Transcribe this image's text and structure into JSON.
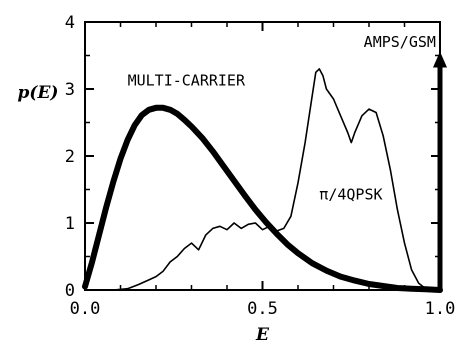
{
  "chart_data": {
    "type": "line",
    "xlabel": "E",
    "ylabel": "p(E)",
    "xlim": [
      0.0,
      1.0
    ],
    "ylim": [
      0,
      4
    ],
    "x_ticks": [
      {
        "value": 0.0,
        "label": "0.0"
      },
      {
        "value": 0.5,
        "label": "0.5"
      },
      {
        "value": 1.0,
        "label": "1.0"
      }
    ],
    "y_ticks": [
      {
        "value": 0,
        "label": "0"
      },
      {
        "value": 1,
        "label": "1"
      },
      {
        "value": 2,
        "label": "2"
      },
      {
        "value": 3,
        "label": "3"
      },
      {
        "value": 4,
        "label": "4"
      }
    ],
    "grid": false,
    "series": [
      {
        "name": "MULTI-CARRIER",
        "style": "thick",
        "x": [
          0.0,
          0.02,
          0.04,
          0.06,
          0.08,
          0.1,
          0.12,
          0.14,
          0.16,
          0.18,
          0.2,
          0.22,
          0.24,
          0.26,
          0.28,
          0.3,
          0.33,
          0.36,
          0.39,
          0.42,
          0.45,
          0.48,
          0.51,
          0.54,
          0.57,
          0.6,
          0.64,
          0.68,
          0.72,
          0.76,
          0.8,
          0.84,
          0.88,
          0.92,
          0.96,
          1.0
        ],
        "y": [
          0.05,
          0.42,
          0.83,
          1.24,
          1.62,
          1.96,
          2.24,
          2.46,
          2.61,
          2.69,
          2.72,
          2.72,
          2.69,
          2.63,
          2.54,
          2.44,
          2.27,
          2.07,
          1.85,
          1.63,
          1.41,
          1.2,
          1.01,
          0.84,
          0.68,
          0.55,
          0.4,
          0.29,
          0.2,
          0.14,
          0.09,
          0.06,
          0.03,
          0.02,
          0.01,
          0.0
        ]
      },
      {
        "name": "π/4QPSK",
        "style": "thin",
        "x": [
          0.0,
          0.08,
          0.12,
          0.15,
          0.18,
          0.2,
          0.22,
          0.24,
          0.26,
          0.28,
          0.3,
          0.32,
          0.34,
          0.36,
          0.38,
          0.4,
          0.42,
          0.44,
          0.46,
          0.48,
          0.5,
          0.52,
          0.54,
          0.56,
          0.58,
          0.6,
          0.62,
          0.64,
          0.65,
          0.66,
          0.67,
          0.68,
          0.7,
          0.72,
          0.74,
          0.75,
          0.76,
          0.78,
          0.8,
          0.82,
          0.84,
          0.86,
          0.88,
          0.9,
          0.92,
          0.94,
          0.96,
          1.0
        ],
        "y": [
          0.0,
          0.0,
          0.02,
          0.08,
          0.15,
          0.2,
          0.28,
          0.42,
          0.5,
          0.62,
          0.7,
          0.6,
          0.82,
          0.92,
          0.95,
          0.9,
          1.0,
          0.92,
          0.98,
          1.0,
          0.9,
          0.95,
          0.88,
          0.92,
          1.1,
          1.6,
          2.2,
          2.9,
          3.25,
          3.3,
          3.2,
          3.0,
          2.85,
          2.6,
          2.35,
          2.2,
          2.35,
          2.6,
          2.7,
          2.65,
          2.3,
          1.8,
          1.2,
          0.7,
          0.3,
          0.1,
          0.02,
          0.0
        ]
      },
      {
        "name": "AMPS/GSM",
        "style": "impulse",
        "x": [
          1.0
        ],
        "y": [
          3.5
        ]
      }
    ],
    "annotations": [
      {
        "text": "MULTI-CARRIER",
        "x": 0.12,
        "y": 3.05
      },
      {
        "text": "π/4QPSK",
        "x": 0.66,
        "y": 1.35
      },
      {
        "text": "AMPS/GSM",
        "x": 0.785,
        "y": 3.63
      }
    ]
  }
}
